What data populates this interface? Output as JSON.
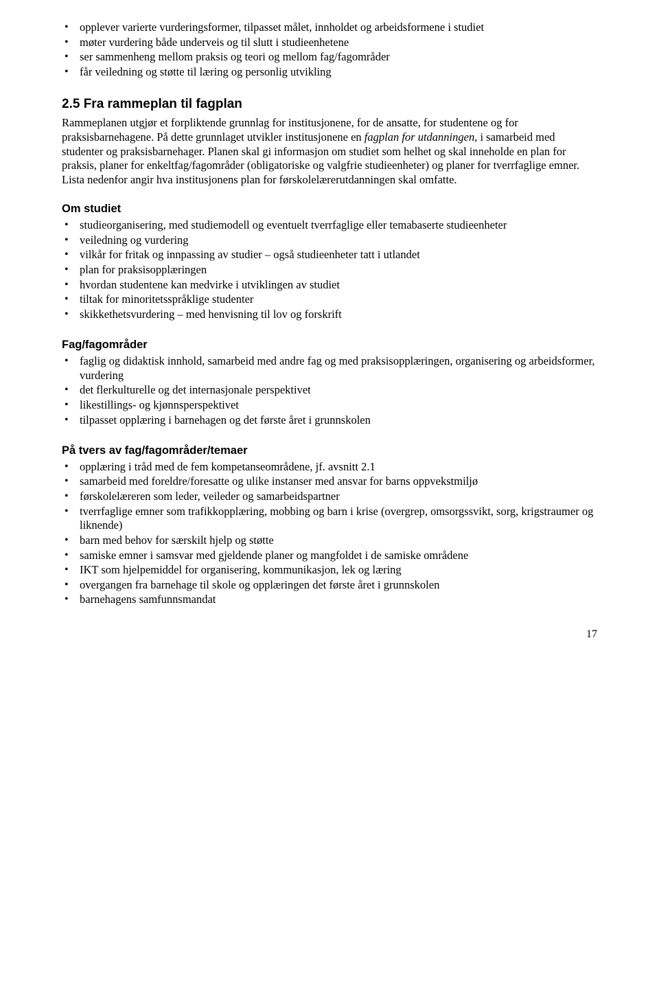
{
  "intro_list": [
    "opplever varierte vurderingsformer, tilpasset målet, innholdet og arbeidsformene i studiet",
    "møter vurdering både underveis og til slutt i studieenhetene",
    "ser sammenheng mellom praksis og teori og mellom fag/fagområder",
    "får veiledning og støtte til læring og personlig utvikling"
  ],
  "section_2_5": {
    "heading": "2.5 Fra rammeplan til fagplan",
    "para_1_pre": "Rammeplanen utgjør et forpliktende grunnlag for institusjonene, for de ansatte, for studentene og for praksisbarnehagene. På dette grunnlaget utvikler institusjonene en ",
    "para_1_italic": "fagplan for utdanningen",
    "para_1_post": ", i samarbeid med studenter og praksisbarnehager. Planen skal gi informasjon om studiet som helhet og skal inneholde en plan for praksis, planer for enkeltfag/fagområder (obligatoriske og valgfrie studieenheter) og planer for tverrfaglige emner. Lista nedenfor angir hva institusjonens plan for førskolelærerutdanningen skal omfatte."
  },
  "om_studiet": {
    "heading": "Om studiet",
    "items": [
      "studieorganisering, med studiemodell og eventuelt tverrfaglige eller temabaserte studieenheter",
      "veiledning og vurdering",
      "vilkår for fritak og innpassing av studier – også studieenheter tatt i utlandet",
      "plan for praksisopplæringen",
      "hvordan studentene kan medvirke i utviklingen av studiet",
      "tiltak for minoritetsspråklige studenter",
      "skikkethetsvurdering – med henvisning til lov og forskrift"
    ]
  },
  "fag_fagomrader": {
    "heading": "Fag/fagområder",
    "items": [
      "faglig og didaktisk innhold, samarbeid med andre fag og med praksisopplæringen, organisering og arbeidsformer, vurdering",
      "det flerkulturelle og det internasjonale perspektivet",
      "likestillings- og kjønnsperspektivet",
      "tilpasset opplæring i barnehagen og det første året i grunnskolen"
    ]
  },
  "pa_tvers": {
    "heading": "På tvers av fag/fagområder/temaer",
    "items": [
      "opplæring i tråd med de fem kompetanseområdene, jf. avsnitt 2.1",
      "samarbeid med foreldre/foresatte og ulike instanser med ansvar for barns oppvekstmiljø",
      "førskolelæreren som leder, veileder og samarbeidspartner",
      "tverrfaglige emner som trafikkopplæring, mobbing og barn i krise (overgrep, omsorgssvikt, sorg, krigstraumer og liknende)",
      "barn med behov for særskilt hjelp og støtte",
      "samiske emner i samsvar med gjeldende planer og mangfoldet i de samiske områdene",
      "IKT som hjelpemiddel for organisering, kommunikasjon, lek og læring",
      "overgangen fra barnehage til skole og opplæringen det første året i grunnskolen",
      "barnehagens samfunnsmandat"
    ]
  },
  "page_number": "17"
}
